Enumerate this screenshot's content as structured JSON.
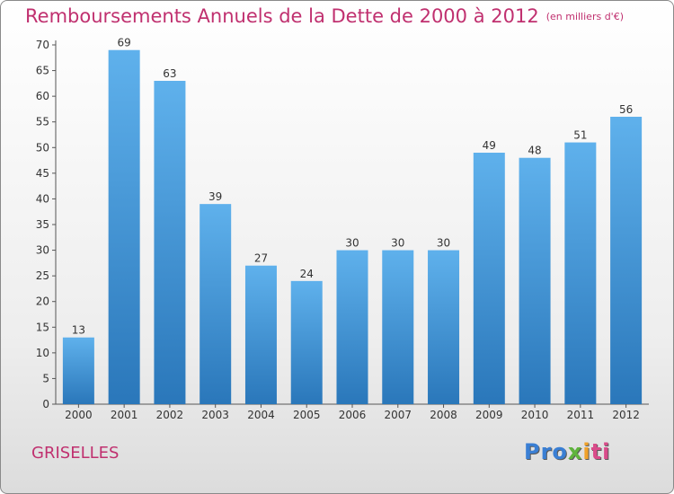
{
  "header": {
    "title": "Remboursements Annuels de la Dette de 2000 à 2012",
    "subtitle": "(en milliers d'€)"
  },
  "footer": {
    "commune": "GRISELLES",
    "logo": [
      "Pro",
      "x",
      "i",
      "ti"
    ]
  },
  "colors": {
    "title": "#c0306f",
    "bar_light": "#5fb1ec",
    "bar_dark": "#2a77ba",
    "axis": "#555555"
  },
  "chart_data": {
    "type": "bar",
    "title": "Remboursements Annuels de la Dette de 2000 à 2012",
    "xlabel": "",
    "ylabel": "",
    "categories": [
      "2000",
      "2001",
      "2002",
      "2003",
      "2004",
      "2005",
      "2006",
      "2007",
      "2008",
      "2009",
      "2010",
      "2011",
      "2012"
    ],
    "values": [
      13,
      69,
      63,
      39,
      27,
      24,
      30,
      30,
      30,
      49,
      48,
      51,
      56
    ],
    "ylim": [
      0,
      70
    ],
    "ytick_step": 5,
    "grid": false,
    "legend": "none"
  }
}
